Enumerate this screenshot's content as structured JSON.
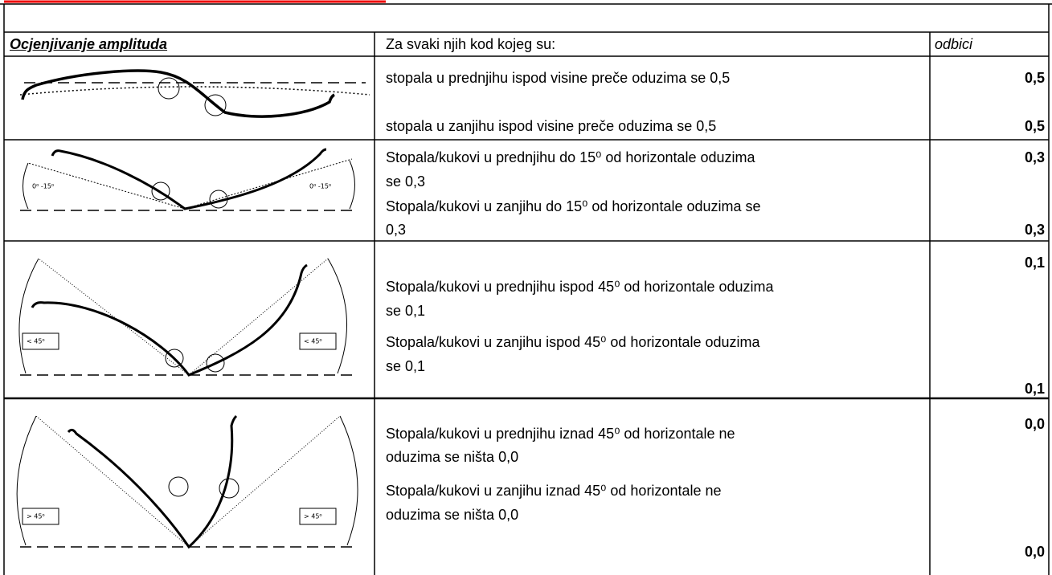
{
  "header": {
    "title": "Ocjenjivanje amplituda",
    "description": "Za svaki njih kod kojeg su:",
    "deductions": "odbici"
  },
  "rows": [
    {
      "angle_labels": [],
      "lines": [
        "stopala u prednjihu ispod visine preče oduzima se 0,5",
        "stopala u zanjihu ispod visine preče oduzima se 0,5"
      ],
      "deductions": [
        "0,5",
        "0,5"
      ]
    },
    {
      "angle_labels": [
        "0⁰ -15⁰",
        "0⁰ -15⁰"
      ],
      "lines": [
        "Stopala/kukovi u prednjihu do 15⁰ od horizontale  oduzima",
        "se 0,3",
        "Stopala/kukovi u zanjihu do 15⁰ od horizontale  oduzima se",
        "0,3"
      ],
      "deductions": [
        "0,3",
        "0,3"
      ]
    },
    {
      "angle_labels": [
        "< 45⁰",
        "< 45⁰"
      ],
      "lines": [
        "Stopala/kukovi u prednjihu ispod 45⁰ od horizontale oduzima",
        "se 0,1",
        "Stopala/kukovi u zanjihu ispod 45⁰ od horizontale oduzima",
        "se 0,1"
      ],
      "deductions": [
        "0,1",
        "0,1"
      ]
    },
    {
      "angle_labels": [
        "> 45⁰",
        "> 45⁰"
      ],
      "lines": [
        "Stopala/kukovi u prednjihu iznad 45⁰ od horizontale ne",
        "oduzima se ništa 0,0",
        "Stopala/kukovi u zanjihu iznad 45⁰ od horizontale ne",
        "oduzima se ništa 0,0"
      ],
      "deductions": [
        "0,0",
        "0,0"
      ]
    }
  ]
}
